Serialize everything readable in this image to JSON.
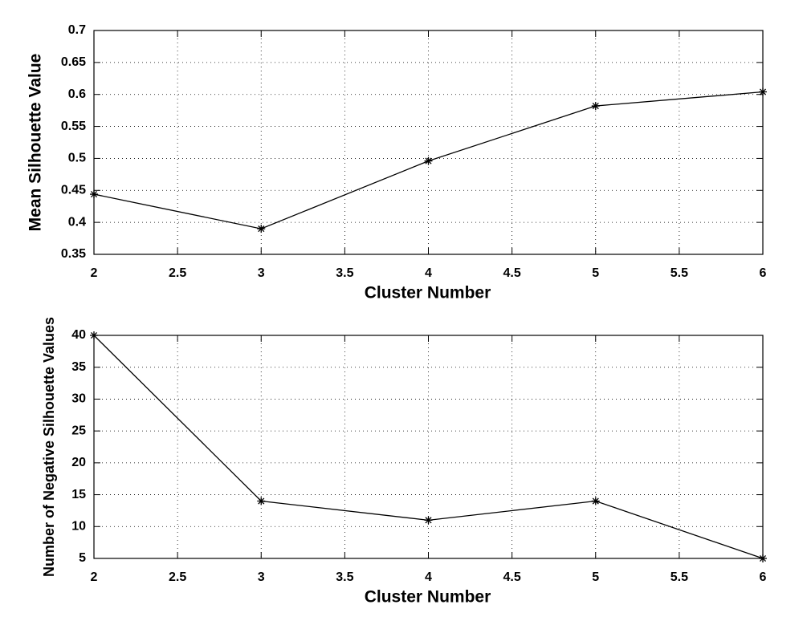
{
  "chart_data": [
    {
      "type": "line",
      "xlabel": "Cluster Number",
      "ylabel": "Mean Silhouette Value",
      "x": [
        2,
        3,
        4,
        5,
        6
      ],
      "values": [
        0.444,
        0.39,
        0.496,
        0.582,
        0.604
      ],
      "color": "#000000",
      "xlim": [
        2,
        6
      ],
      "xticks": [
        2,
        2.5,
        3,
        3.5,
        4,
        4.5,
        5,
        5.5,
        6
      ],
      "ylim": [
        0.35,
        0.7
      ],
      "yticks": [
        0.35,
        0.4,
        0.45,
        0.5,
        0.55,
        0.6,
        0.65,
        0.7
      ],
      "grid": true
    },
    {
      "type": "line",
      "xlabel": "Cluster Number",
      "ylabel": "Number of Negative Silhouette Values",
      "x": [
        2,
        3,
        4,
        5,
        6
      ],
      "values": [
        40,
        14,
        11,
        14,
        5
      ],
      "color": "#000000",
      "xlim": [
        2,
        6
      ],
      "xticks": [
        2,
        2.5,
        3,
        3.5,
        4,
        4.5,
        5,
        5.5,
        6
      ],
      "ylim": [
        5,
        40
      ],
      "yticks": [
        5,
        10,
        15,
        20,
        25,
        30,
        35,
        40
      ],
      "grid": true
    }
  ]
}
